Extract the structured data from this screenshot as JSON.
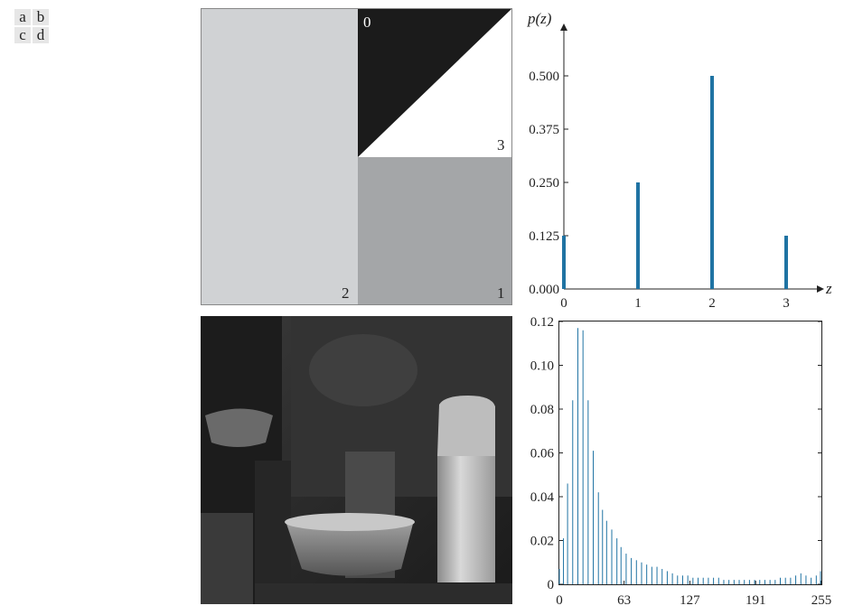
{
  "panel_labels": [
    "a",
    "b",
    "c",
    "d"
  ],
  "synthetic_image": {
    "region_labels": {
      "top_left_triangle": "0",
      "top_right_triangle": "3",
      "left_region": "2",
      "bottom_right_region": "1"
    },
    "colors": {
      "level0": "#1b1b1b",
      "level1": "#a4a6a8",
      "level2": "#d0d2d4",
      "level3": "#ffffff"
    }
  },
  "chart_data": [
    {
      "type": "bar",
      "title": "",
      "ylabel": "p(z)",
      "xlabel": "z",
      "x": [
        0,
        1,
        2,
        3
      ],
      "values": [
        0.125,
        0.25,
        0.5,
        0.125
      ],
      "x_tick_labels": [
        "0",
        "1",
        "2",
        "3"
      ],
      "y_tick_labels": [
        "0.000",
        "0.125",
        "0.250",
        "0.375",
        "0.500"
      ],
      "ylim": [
        0,
        0.5
      ],
      "bar_color": "#1f73a3"
    },
    {
      "type": "bar",
      "title": "",
      "xlabel": "",
      "ylabel": "",
      "x_tick_labels": [
        "0",
        "63",
        "127",
        "191",
        "255"
      ],
      "y_tick_labels": [
        "0",
        "0.02",
        "0.04",
        "0.06",
        "0.08",
        "0.10",
        "0.12"
      ],
      "xlim": [
        0,
        255
      ],
      "ylim": [
        0,
        0.12
      ],
      "bar_color": "#1f73a3",
      "x": [
        0,
        4,
        8,
        13,
        18,
        23,
        28,
        33,
        38,
        42,
        46,
        51,
        56,
        60,
        65,
        70,
        75,
        80,
        85,
        90,
        95,
        100,
        105,
        110,
        115,
        120,
        125,
        130,
        135,
        140,
        145,
        150,
        155,
        160,
        165,
        170,
        175,
        180,
        185,
        190,
        195,
        200,
        205,
        210,
        215,
        220,
        225,
        230,
        235,
        240,
        245,
        250,
        255
      ],
      "values": [
        0.007,
        0.021,
        0.046,
        0.084,
        0.117,
        0.116,
        0.084,
        0.061,
        0.042,
        0.034,
        0.029,
        0.025,
        0.021,
        0.017,
        0.014,
        0.012,
        0.011,
        0.01,
        0.009,
        0.008,
        0.008,
        0.007,
        0.006,
        0.005,
        0.004,
        0.004,
        0.004,
        0.003,
        0.003,
        0.003,
        0.003,
        0.003,
        0.003,
        0.002,
        0.002,
        0.002,
        0.002,
        0.002,
        0.002,
        0.002,
        0.002,
        0.002,
        0.002,
        0.002,
        0.003,
        0.003,
        0.003,
        0.004,
        0.005,
        0.004,
        0.003,
        0.004,
        0.006
      ]
    }
  ]
}
